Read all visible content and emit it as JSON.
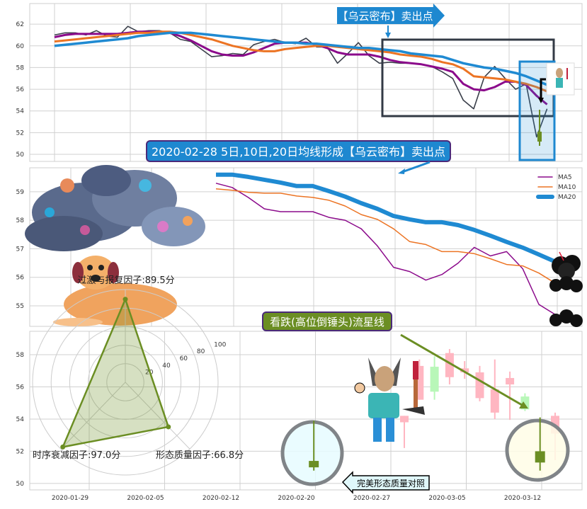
{
  "chart_data": [
    {
      "type": "line",
      "ylim": [
        49.35,
        63.9
      ],
      "yticks": [
        50,
        52,
        54,
        56,
        58,
        60,
        62
      ],
      "grid": true,
      "series": [
        {
          "key": "close",
          "color": "#3a3f4a",
          "values": [
            61.0,
            61.2,
            61.2,
            61.0,
            61.4,
            60.9,
            60.8,
            61.8,
            61.3,
            61.4,
            61.4,
            61.2,
            60.6,
            60.4,
            59.7,
            59.0,
            59.1,
            59.3,
            59.2,
            60.1,
            60.4,
            60.6,
            60.3,
            60.2,
            60.7,
            59.9,
            59.9,
            58.4,
            59.3,
            60.3,
            59.1,
            58.4,
            58.5,
            58.4,
            58.4,
            58.3,
            58.1,
            57.6,
            57.0,
            55.0,
            54.2,
            57.1,
            58.1,
            57.0,
            56.0,
            56.5,
            51.6,
            54.2
          ]
        },
        {
          "key": "ma5",
          "color": "#8b0a8b",
          "values": [
            60.8,
            61.0,
            61.1,
            61.1,
            61.1,
            61.1,
            61.1,
            61.2,
            61.3,
            61.3,
            61.3,
            61.2,
            60.9,
            60.5,
            60.0,
            59.5,
            59.2,
            59.1,
            59.1,
            59.4,
            59.8,
            60.2,
            60.3,
            60.3,
            60.3,
            60.1,
            59.8,
            59.4,
            59.2,
            59.2,
            59.2,
            59.0,
            58.7,
            58.5,
            58.4,
            58.3,
            58.1,
            57.9,
            57.6,
            56.5,
            56.0,
            55.9,
            56.2,
            56.7,
            56.7,
            56.4,
            55.4,
            54.6
          ]
        },
        {
          "key": "ma10",
          "color": "#ec7424",
          "values": [
            60.4,
            60.5,
            60.6,
            60.7,
            60.8,
            60.9,
            61.0,
            61.1,
            61.2,
            61.2,
            61.3,
            61.3,
            61.2,
            61.0,
            60.8,
            60.6,
            60.3,
            60.0,
            59.8,
            59.6,
            59.5,
            59.5,
            59.7,
            59.8,
            59.9,
            60.0,
            60.0,
            59.9,
            59.8,
            59.7,
            59.6,
            59.5,
            59.4,
            59.2,
            59.1,
            59.0,
            58.8,
            58.5,
            58.3,
            57.9,
            57.2,
            57.1,
            57.0,
            56.9,
            56.7,
            56.5,
            56.2,
            55.8
          ]
        },
        {
          "key": "ma20",
          "color": "#1f8ad2",
          "values": [
            60.0,
            60.1,
            60.2,
            60.3,
            60.4,
            60.5,
            60.6,
            60.7,
            60.9,
            61.0,
            61.1,
            61.2,
            61.2,
            61.2,
            61.1,
            61.0,
            60.9,
            60.8,
            60.7,
            60.6,
            60.5,
            60.4,
            60.3,
            60.3,
            60.2,
            60.2,
            60.1,
            60.0,
            59.9,
            59.8,
            59.8,
            59.7,
            59.6,
            59.5,
            59.3,
            59.2,
            59.1,
            59.0,
            58.7,
            58.4,
            58.2,
            58.0,
            57.9,
            57.7,
            57.5,
            57.2,
            56.8,
            56.4
          ]
        }
      ]
    },
    {
      "type": "line",
      "ylim": [
        54.28,
        59.84
      ],
      "yticks": [
        55,
        56,
        57,
        58,
        59
      ],
      "grid": true,
      "legend": "top-right",
      "series": [
        {
          "name": "MA5",
          "color": "#8b0a8b",
          "values": [
            59.3,
            59.15,
            58.8,
            58.4,
            58.3,
            58.3,
            58.3,
            58.1,
            58.0,
            57.7,
            57.1,
            56.35,
            56.2,
            55.9,
            56.1,
            56.5,
            57.05,
            56.75,
            56.9,
            56.3,
            55.05,
            54.7
          ]
        },
        {
          "name": "MA10",
          "color": "#ec7424",
          "values": [
            59.1,
            59.05,
            58.98,
            58.95,
            58.95,
            58.85,
            58.8,
            58.7,
            58.5,
            58.2,
            58.03,
            57.7,
            57.25,
            57.15,
            56.9,
            56.9,
            56.83,
            56.65,
            56.45,
            56.4,
            56.15,
            55.8
          ]
        },
        {
          "name": "MA20",
          "color": "#1f8ad2",
          "values": [
            59.6,
            59.6,
            59.52,
            59.42,
            59.32,
            59.2,
            59.2,
            59.02,
            58.83,
            58.6,
            58.4,
            58.15,
            58.03,
            57.93,
            57.93,
            57.83,
            57.66,
            57.46,
            57.24,
            57.04,
            56.8,
            56.55
          ]
        }
      ]
    },
    {
      "type": "candlestick",
      "ylim": [
        49.6,
        59.45
      ],
      "yticks": [
        50,
        52,
        54,
        56,
        58
      ],
      "xticks": [
        "2020-01-29",
        "2020-02-05",
        "2020-02-12",
        "2020-02-20",
        "2020-02-27",
        "2020-03-05",
        "2020-03-12"
      ],
      "grid": true,
      "candles": [
        {
          "idx": -6,
          "open": 51.4,
          "close": 51.0,
          "high": 53.9,
          "low": 50.8,
          "color": "#6b8e23"
        },
        {
          "idx": 0,
          "open": 54.2,
          "close": 53.8,
          "high": 54.2,
          "low": 52.2,
          "color": "#ffb6c1"
        },
        {
          "idx": 1,
          "open": 57.3,
          "close": 55.2,
          "high": 57.7,
          "low": 55.2,
          "color": "#ffb6c1"
        },
        {
          "idx": 2,
          "open": 55.7,
          "close": 57.25,
          "high": 57.9,
          "low": 55.2,
          "color": "#b8f7b8"
        },
        {
          "idx": 3,
          "open": 58.1,
          "close": 56.6,
          "high": 58.35,
          "low": 56.15,
          "color": "#ffb6c1"
        },
        {
          "idx": 4,
          "open": 57.15,
          "close": 56.9,
          "high": 57.6,
          "low": 56.5,
          "color": "#ffb6c1"
        },
        {
          "idx": 5,
          "open": 56.9,
          "close": 55.3,
          "high": 57.3,
          "low": 55.1,
          "color": "#ffb6c1"
        },
        {
          "idx": 6,
          "open": 55.85,
          "close": 54.4,
          "high": 57.7,
          "low": 54.0,
          "color": "#ffb6c1"
        },
        {
          "idx": 7,
          "open": 56.55,
          "close": 56.15,
          "high": 56.95,
          "low": 53.95,
          "color": "#ffb6c1"
        },
        {
          "idx": 8,
          "open": 54.6,
          "close": 55.4,
          "high": 55.6,
          "low": 54.5,
          "color": "#b8f7b8"
        },
        {
          "idx": 9,
          "open": 52.0,
          "close": 51.3,
          "high": 54.1,
          "low": 50.8,
          "color": "#6b8e23"
        },
        {
          "idx": 10,
          "open": 54.2,
          "close": 53.1,
          "high": 54.4,
          "low": 51.45,
          "color": "#ffb6c1"
        }
      ]
    },
    {
      "type": "radar",
      "rlim": [
        0,
        100
      ],
      "rticks": [
        20,
        40,
        60,
        80,
        100
      ],
      "color": "#6b8e23",
      "axes": [
        {
          "label": "过激与报复因子:89.5分",
          "value": 89.5
        },
        {
          "label": "时序衰减因子:97.0分",
          "value": 97.0
        },
        {
          "label": "形态质量因子:66.8分",
          "value": 66.8
        }
      ]
    }
  ],
  "annotations": {
    "top_callout": "【乌云密布】卖出点",
    "main_callout": "2020-02-28 5日,10日,20日均线形成【乌云密布】卖出点",
    "pattern_callout": "看跌(高位倒锤头)流星线",
    "compare_callout": "完美形态质量对照"
  },
  "colors": {
    "callout_blue": "#1e88d0",
    "callout_border": "#4b2a7a",
    "olive": "#6b8e23",
    "pink": "#ffb6c1",
    "green": "#b8f7b8"
  }
}
